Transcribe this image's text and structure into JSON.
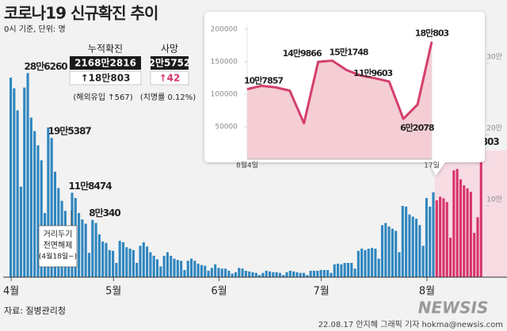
{
  "header": {
    "title": "코로나19 신규확진 추이",
    "subtitle": "0시 기준, 단위: 명"
  },
  "stats": {
    "cumulative": {
      "label": "누적확진",
      "total": "2168만2816",
      "change": "↑18만803"
    },
    "deaths": {
      "label": "사망",
      "total": "2만5752",
      "change": "↑42"
    },
    "notes": [
      "(해외유입 ↑567)",
      "(치명률 0.12%)"
    ]
  },
  "chart_data": [
    {
      "type": "bar",
      "categories": [
        "4월",
        null,
        null,
        null,
        null,
        null,
        null,
        null,
        null,
        null,
        null,
        null,
        null,
        null,
        null,
        null,
        null,
        null,
        null,
        null,
        null,
        null,
        null,
        null,
        null,
        null,
        null,
        null,
        null,
        null,
        "5월",
        null,
        null,
        null,
        null,
        null,
        null,
        null,
        null,
        null,
        null,
        null,
        null,
        null,
        null,
        null,
        null,
        null,
        null,
        null,
        null,
        null,
        null,
        null,
        null,
        null,
        null,
        null,
        null,
        null,
        null,
        "6월",
        null,
        null,
        null,
        null,
        null,
        null,
        null,
        null,
        null,
        null,
        null,
        null,
        null,
        null,
        null,
        null,
        null,
        null,
        null,
        null,
        null,
        null,
        null,
        null,
        null,
        null,
        null,
        null,
        null,
        "7월",
        null,
        null,
        null,
        null,
        null,
        null,
        null,
        null,
        null,
        null,
        null,
        null,
        null,
        null,
        null,
        null,
        null,
        null,
        null,
        null,
        null,
        null,
        null,
        null,
        null,
        null,
        null,
        null,
        null,
        null,
        "8월",
        null,
        null,
        null,
        null,
        null,
        null,
        null,
        null,
        null,
        null,
        null,
        null,
        null,
        null,
        null,
        null
      ],
      "values": [
        280000,
        265000,
        234000,
        127000,
        266000,
        286260,
        224000,
        205000,
        185000,
        164000,
        90000,
        210000,
        195387,
        148000,
        125000,
        107000,
        93000,
        47000,
        118474,
        111000,
        90000,
        81000,
        75000,
        34000,
        80340,
        76000,
        60000,
        50000,
        48000,
        38000,
        37000,
        20000,
        51000,
        49000,
        42000,
        40000,
        38000,
        20000,
        44000,
        49000,
        43000,
        35000,
        30000,
        25000,
        15000,
        30000,
        35000,
        30000,
        26000,
        24000,
        23000,
        10000,
        23000,
        26000,
        23000,
        19000,
        17000,
        16000,
        9000,
        13000,
        18000,
        13000,
        12000,
        12000,
        9000,
        5000,
        7000,
        13000,
        12000,
        9000,
        8000,
        7000,
        6000,
        3000,
        6000,
        9000,
        8000,
        7000,
        7000,
        6000,
        3000,
        7000,
        9000,
        8000,
        7000,
        6000,
        6000,
        3000,
        9000,
        9000,
        9000,
        10000,
        10000,
        10000,
        6000,
        18000,
        19000,
        18000,
        20000,
        20000,
        20000,
        12000,
        37000,
        40000,
        38000,
        40000,
        41000,
        40000,
        26000,
        73000,
        76000,
        71000,
        68000,
        65000,
        35000,
        100000,
        99000,
        88000,
        85000,
        82000,
        73000,
        44000,
        111000,
        99000,
        119000,
        107857,
        112901,
        110666,
        105507,
        55292,
        149866,
        151748,
        137241,
        128714,
        124592,
        119603,
        62078,
        84128,
        180803
      ],
      "value_labels": [
        null,
        null,
        null,
        null,
        null,
        "28만6260",
        null,
        null,
        null,
        null,
        null,
        null,
        "19만5387",
        null,
        null,
        null,
        null,
        null,
        "11만8474",
        null,
        null,
        null,
        null,
        null,
        "8만340",
        null,
        null,
        null,
        null,
        null,
        null,
        null,
        null,
        null,
        null,
        null,
        null,
        null,
        null,
        null,
        null,
        null,
        null,
        null,
        null,
        null,
        null,
        null,
        null,
        null,
        null,
        null,
        null,
        null,
        null,
        null,
        null,
        null,
        null,
        null,
        null,
        null,
        null,
        null,
        null,
        null,
        null,
        null,
        null,
        null,
        null,
        null,
        null,
        null,
        null,
        null,
        null,
        null,
        null,
        null,
        null,
        null,
        null,
        null,
        null,
        null,
        null,
        null,
        null,
        null,
        null,
        null,
        null,
        null,
        null,
        null,
        null,
        null,
        null,
        null,
        null,
        null,
        null,
        null,
        null,
        null,
        null,
        null,
        null,
        null,
        null,
        null,
        null,
        null,
        null,
        null,
        null,
        null,
        null,
        null,
        null,
        null,
        null,
        null,
        null,
        null,
        null,
        null,
        null,
        null,
        null,
        null,
        null,
        null,
        null,
        null,
        null,
        null,
        "18만803"
      ],
      "color": "#2f86bf",
      "highlight": {
        "from": 125,
        "color": "#d7336b",
        "background": "#f7dce4"
      },
      "ylim": [
        0,
        350000
      ],
      "yticks": [
        {
          "value": 100000,
          "label": "10만"
        },
        {
          "value": 200000,
          "label": "20만"
        },
        {
          "value": 300000,
          "label": "30만"
        }
      ],
      "annotation": [
        "거리두기",
        "전면해제",
        "(4월18일~)"
      ]
    },
    {
      "type": "line",
      "categories": [
        "8월4일",
        null,
        null,
        null,
        null,
        null,
        null,
        null,
        null,
        null,
        null,
        null,
        null,
        "17일"
      ],
      "values": [
        107857,
        112901,
        110666,
        105507,
        55292,
        149866,
        151748,
        137241,
        128714,
        124592,
        119603,
        62078,
        84128,
        180803
      ],
      "value_labels": [
        "10만7857",
        null,
        null,
        null,
        null,
        "14만9866",
        "15만1748",
        null,
        null,
        null,
        "11만9603",
        "6만2078",
        null,
        "18만803"
      ],
      "color": "#d43f6c",
      "fill": "#f2c5cd",
      "ylim": [
        0,
        200000
      ],
      "yticks": [
        50000,
        100000,
        150000,
        200000
      ]
    }
  ],
  "footer": {
    "source": "자료: 질병관리청",
    "credit": "22.08.17 안지혜 그래픽 기자 hokma@newsis.com",
    "logo": "NEWSIS"
  }
}
